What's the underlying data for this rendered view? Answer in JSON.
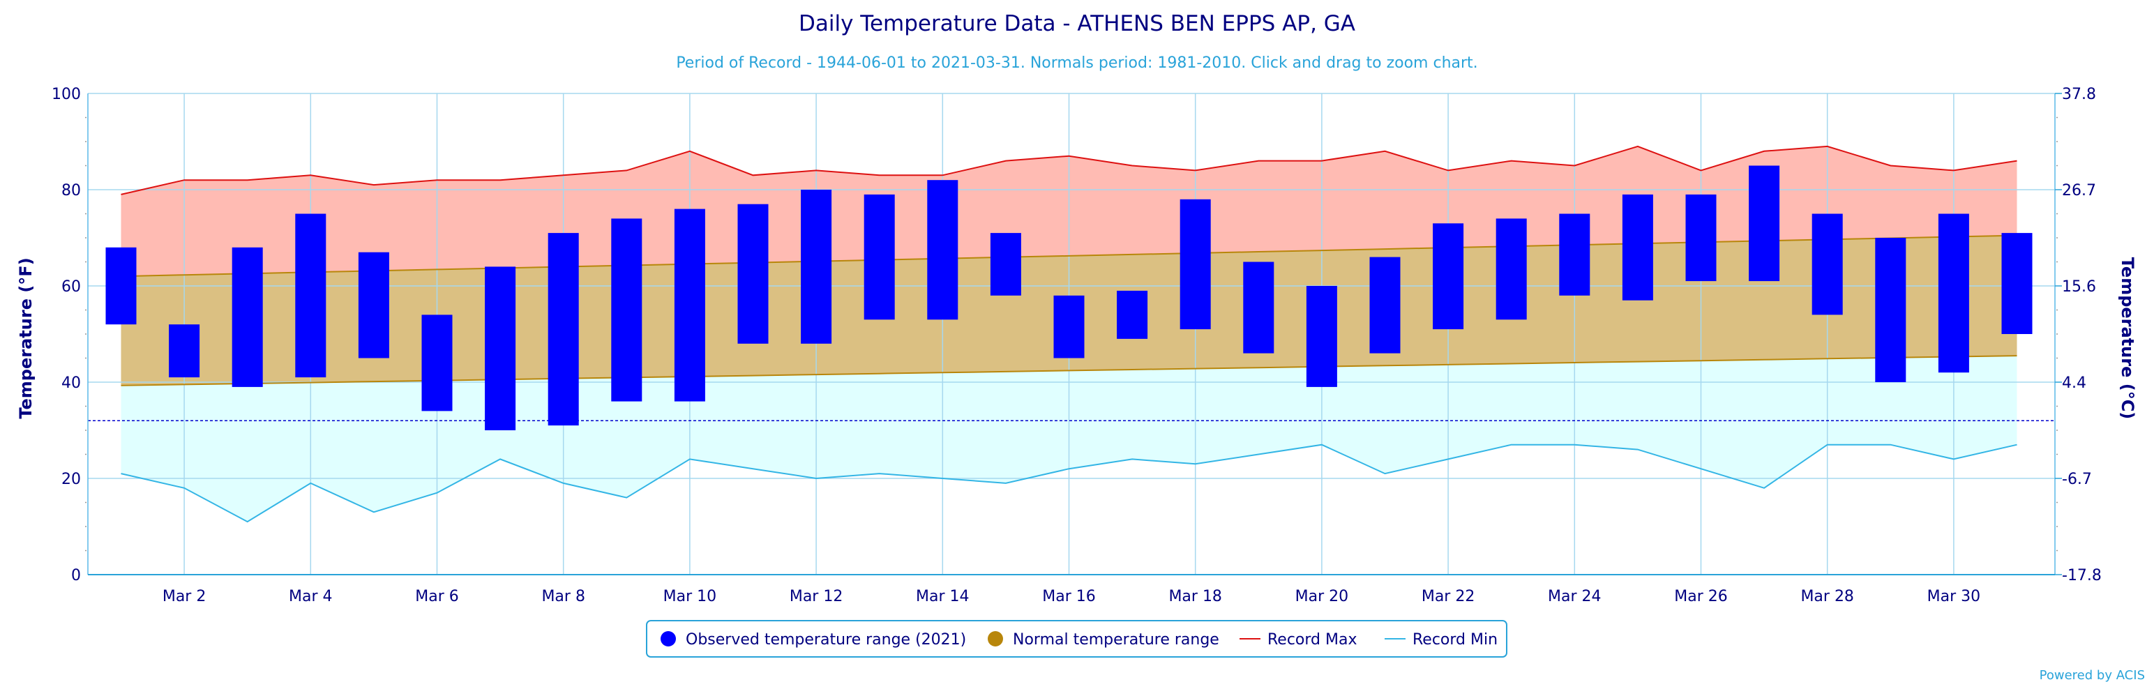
{
  "chart_data": {
    "type": "bar",
    "title": "Daily Temperature Data - ATHENS BEN EPPS AP, GA",
    "subtitle": "Period of Record - 1944-06-01 to 2021-03-31. Normals period: 1981-2010. Click and drag to zoom chart.",
    "ylabel": "Temperature (°F)",
    "ylabel_right": "Temperature (°C)",
    "ylim": [
      0,
      100
    ],
    "yticks": [
      "0",
      "20",
      "40",
      "60",
      "80",
      "100"
    ],
    "yticks_right": [
      "-17.8",
      "-6.7",
      "4.4",
      "15.6",
      "26.7",
      "37.8"
    ],
    "x": [
      1,
      2,
      3,
      4,
      5,
      6,
      7,
      8,
      9,
      10,
      11,
      12,
      13,
      14,
      15,
      16,
      17,
      18,
      19,
      20,
      21,
      22,
      23,
      24,
      25,
      26,
      27,
      28,
      29,
      30,
      31
    ],
    "xticks": [
      "Mar 2",
      "Mar 4",
      "Mar 6",
      "Mar 8",
      "Mar 10",
      "Mar 12",
      "Mar 14",
      "Mar 16",
      "Mar 18",
      "Mar 20",
      "Mar 22",
      "Mar 24",
      "Mar 26",
      "Mar 28",
      "Mar 30"
    ],
    "xtick_days": [
      2,
      4,
      6,
      8,
      10,
      12,
      14,
      16,
      18,
      20,
      22,
      24,
      26,
      28,
      30
    ],
    "freezing_line": 32,
    "grid": true,
    "legend_position": "bottom-center",
    "series": [
      {
        "name": "Observed temperature range (2021)",
        "color": "#0000ff",
        "low": [
          52,
          41,
          39,
          41,
          45,
          34,
          30,
          31,
          36,
          36,
          48,
          48,
          53,
          53,
          58,
          45,
          49,
          51,
          46,
          39,
          46,
          51,
          53,
          58,
          57,
          61,
          61,
          54,
          40,
          42,
          50
        ],
        "high": [
          68,
          52,
          68,
          75,
          67,
          54,
          64,
          71,
          74,
          76,
          77,
          80,
          79,
          82,
          71,
          58,
          59,
          78,
          65,
          60,
          66,
          73,
          74,
          75,
          79,
          79,
          85,
          75,
          70,
          75,
          71
        ]
      },
      {
        "name": "Normal temperature range",
        "color": "#b8860b",
        "fill": "#dbc082",
        "low_start": 39.3,
        "low_end": 45.5,
        "high_start": 62.0,
        "high_end": 70.5
      },
      {
        "name": "Record Max",
        "color": "#dd1111",
        "fill": "#ffbbb3",
        "values": [
          79,
          82,
          82,
          83,
          81,
          82,
          82,
          83,
          84,
          88,
          83,
          84,
          83,
          83,
          86,
          87,
          85,
          84,
          86,
          86,
          88,
          84,
          86,
          85,
          89,
          84,
          88,
          89,
          85,
          84,
          86
        ]
      },
      {
        "name": "Record Min",
        "color": "#33b5e5",
        "fill": "#e0ffff",
        "values": [
          21,
          18,
          11,
          19,
          13,
          17,
          24,
          19,
          16,
          24,
          22,
          20,
          21,
          20,
          19,
          22,
          24,
          23,
          25,
          27,
          21,
          24,
          27,
          27,
          26,
          22,
          18,
          27,
          27,
          24,
          27
        ]
      }
    ]
  },
  "footer": {
    "credit": "Powered by ACIS"
  }
}
